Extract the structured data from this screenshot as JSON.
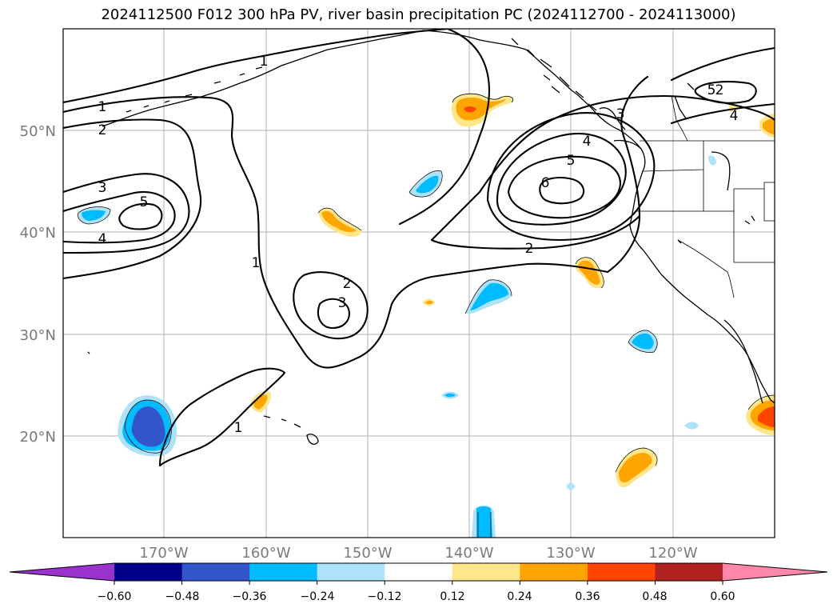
{
  "title": "2024112500 F012 300 hPa PV, river basin precipitation PC (2024112700 - 2024113000)",
  "map": {
    "lat_labels": [
      "50°N",
      "40°N",
      "30°N",
      "20°N"
    ],
    "lon_labels": [
      "170°W",
      "160°W",
      "150°W",
      "140°W",
      "130°W",
      "120°W"
    ],
    "pv_contour_labels": [
      "1",
      "1",
      "1",
      "1",
      "2",
      "2",
      "2",
      "2",
      "3",
      "3",
      "3",
      "4",
      "4",
      "4",
      "5",
      "5",
      "5",
      "6"
    ],
    "pv_contour_levels": [
      1,
      2,
      3,
      4,
      5,
      6
    ],
    "projection_extent": {
      "lon_min": -180,
      "lon_max": -110,
      "lat_min": 10,
      "lat_max": 60
    }
  },
  "colorbar": {
    "ticks": [
      "−0.60",
      "−0.48",
      "−0.36",
      "−0.24",
      "−0.12",
      "0.12",
      "0.24",
      "0.36",
      "0.48",
      "0.60"
    ],
    "colors": [
      "#9933cc",
      "#000088",
      "#3355cc",
      "#00bbff",
      "#aee2f8",
      "#ffffff",
      "#ffe68a",
      "#ffa500",
      "#ff4500",
      "#b22222",
      "#ff88aa"
    ],
    "extend": "both"
  }
}
